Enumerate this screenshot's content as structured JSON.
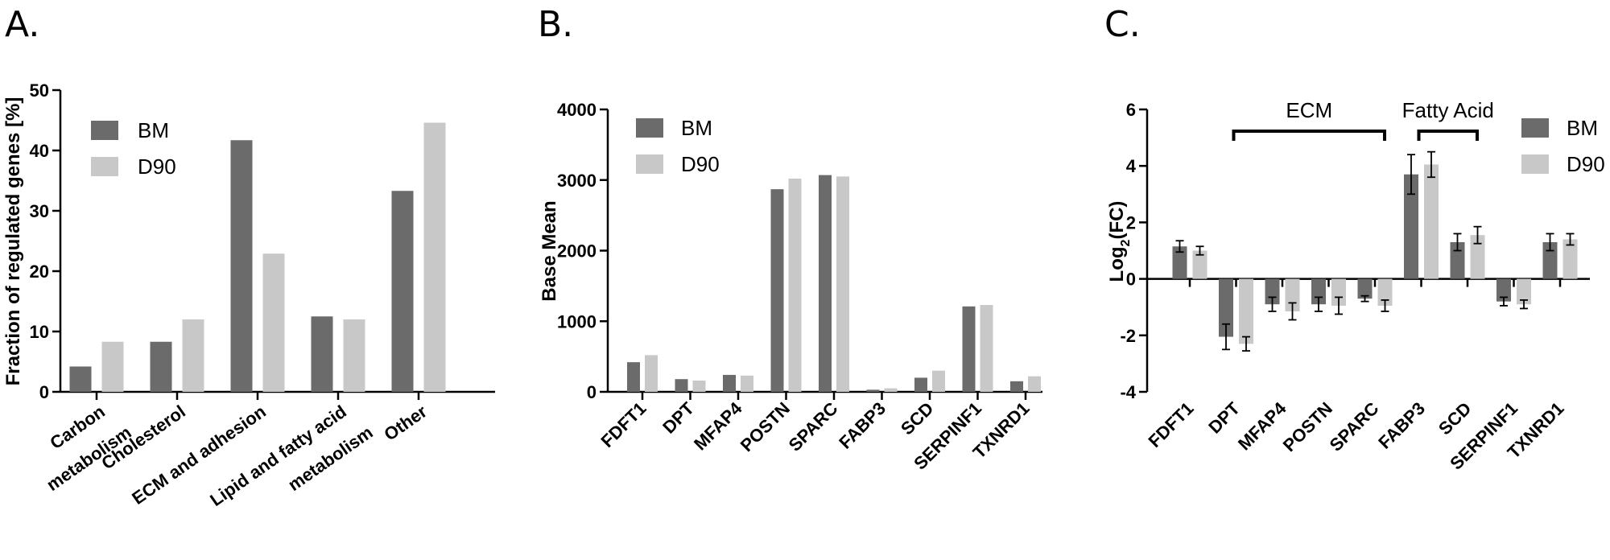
{
  "figure": {
    "panels": [
      "A.",
      "B.",
      "C."
    ]
  },
  "colors": {
    "BM": "#6b6b6b",
    "D90": "#c8c8c8"
  },
  "chart_data": [
    {
      "id": "A",
      "type": "bar",
      "panel_label": "A.",
      "ylabel": "Fraction of regulated genes [%]",
      "ylim": [
        0,
        50
      ],
      "yticks": [
        0,
        10,
        20,
        30,
        40,
        50
      ],
      "categories": [
        [
          "Carbon",
          "metabolism"
        ],
        [
          "Cholesterol"
        ],
        [
          "ECM and adhesion"
        ],
        [
          "Lipid and fatty acid",
          "metabolism"
        ],
        [
          "Other"
        ]
      ],
      "series": [
        {
          "name": "BM",
          "values": [
            4.2,
            8.3,
            41.7,
            12.5,
            33.3
          ]
        },
        {
          "name": "D90",
          "values": [
            8.3,
            12.0,
            22.9,
            12.0,
            44.6
          ]
        }
      ],
      "legend": "top-left"
    },
    {
      "id": "B",
      "type": "bar",
      "panel_label": "B.",
      "ylabel": "Base Mean",
      "ylim": [
        0,
        4000
      ],
      "yticks": [
        0,
        1000,
        2000,
        3000,
        4000
      ],
      "categories": [
        "FDFT1",
        "DPT",
        "MFAP4",
        "POSTN",
        "SPARC",
        "FABP3",
        "SCD",
        "SERPINF1",
        "TXNRD1"
      ],
      "series": [
        {
          "name": "BM",
          "values": [
            420,
            180,
            240,
            2870,
            3070,
            30,
            200,
            1210,
            150
          ]
        },
        {
          "name": "D90",
          "values": [
            520,
            160,
            230,
            3020,
            3050,
            50,
            300,
            1230,
            220
          ]
        }
      ],
      "legend": "top-left"
    },
    {
      "id": "C",
      "type": "bar",
      "panel_label": "C.",
      "ylabel_main": "Log",
      "ylabel_sub": "2",
      "ylabel_rest": "(FC)",
      "ylim": [
        -4,
        6
      ],
      "yticks": [
        -4,
        -2,
        0,
        2,
        4,
        6
      ],
      "categories": [
        "FDFT1",
        "DPT",
        "MFAP4",
        "POSTN",
        "SPARC",
        "FABP3",
        "SCD",
        "SERPINF1",
        "TXNRD1"
      ],
      "series": [
        {
          "name": "BM",
          "values": [
            1.15,
            -2.05,
            -0.9,
            -0.9,
            -0.7,
            3.7,
            1.3,
            -0.8,
            1.3
          ],
          "errors": [
            0.2,
            0.45,
            0.25,
            0.25,
            0.1,
            0.7,
            0.3,
            0.15,
            0.3
          ]
        },
        {
          "name": "D90",
          "values": [
            1.0,
            -2.3,
            -1.15,
            -0.95,
            -0.95,
            4.05,
            1.55,
            -0.9,
            1.4
          ],
          "errors": [
            0.15,
            0.25,
            0.3,
            0.3,
            0.2,
            0.45,
            0.3,
            0.15,
            0.2
          ]
        }
      ],
      "brackets": [
        {
          "label": "ECM",
          "from": 1,
          "to": 4
        },
        {
          "label": "Fatty Acid",
          "from": 5,
          "to": 6
        }
      ],
      "legend": "top-right"
    }
  ]
}
